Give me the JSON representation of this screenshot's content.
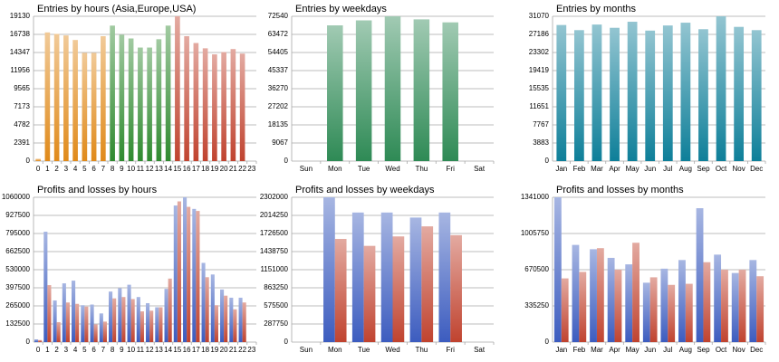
{
  "chart_data": [
    {
      "type": "bar",
      "title": "Entries by hours (Asia,Europe,USA)",
      "categories": [
        "0",
        "1",
        "2",
        "3",
        "4",
        "5",
        "6",
        "7",
        "8",
        "9",
        "10",
        "11",
        "12",
        "13",
        "14",
        "15",
        "16",
        "17",
        "18",
        "19",
        "20",
        "21",
        "22",
        "23"
      ],
      "values": [
        300,
        17000,
        16800,
        16600,
        16000,
        14300,
        14300,
        16500,
        17900,
        16700,
        16200,
        15000,
        15000,
        16100,
        17900,
        19130,
        16500,
        15600,
        14900,
        14100,
        14400,
        14800,
        14200,
        null
      ],
      "colors": [
        "#e08a1a",
        "#e08a1a",
        "#e08a1a",
        "#e08a1a",
        "#e08a1a",
        "#e08a1a",
        "#e08a1a",
        "#e08a1a",
        "#2f8a2f",
        "#2f8a2f",
        "#2f8a2f",
        "#2f8a2f",
        "#2f8a2f",
        "#2f8a2f",
        "#2f8a2f",
        "#c0432f",
        "#c0432f",
        "#c0432f",
        "#c0432f",
        "#c0432f",
        "#c0432f",
        "#c0432f",
        "#c0432f",
        "#c0432f"
      ],
      "ylim": [
        0,
        19130
      ],
      "yticks": [
        0,
        2391,
        4782,
        7173,
        9565,
        11956,
        14347,
        16738,
        19130
      ],
      "grid": true
    },
    {
      "type": "bar",
      "title": "Entries by weekdays",
      "categories": [
        "Sun",
        "Mon",
        "Tue",
        "Wed",
        "Thu",
        "Fri",
        "Sat"
      ],
      "values": [
        0,
        68000,
        70500,
        72540,
        71000,
        69500,
        0
      ],
      "color": "#2e8a55",
      "ylim": [
        0,
        72540
      ],
      "yticks": [
        0,
        9067,
        18135,
        27202,
        36270,
        45337,
        54405,
        63472,
        72540
      ],
      "grid": true
    },
    {
      "type": "bar",
      "title": "Entries by months",
      "categories": [
        "Jan",
        "Feb",
        "Mar",
        "Apr",
        "May",
        "Jun",
        "Jul",
        "Aug",
        "Sep",
        "Oct",
        "Nov",
        "Dec"
      ],
      "values": [
        29200,
        28100,
        29300,
        28600,
        29900,
        28000,
        29100,
        29700,
        28300,
        31070,
        28800,
        28100
      ],
      "color": "#0e7f99",
      "ylim": [
        0,
        31070
      ],
      "yticks": [
        0,
        3883,
        7767,
        11651,
        15535,
        19419,
        23302,
        27186,
        31070
      ],
      "grid": true
    },
    {
      "type": "grouped_bar",
      "title": "Profits and losses by hours",
      "categories": [
        "0",
        "1",
        "2",
        "3",
        "4",
        "5",
        "6",
        "7",
        "8",
        "9",
        "10",
        "11",
        "12",
        "13",
        "14",
        "15",
        "16",
        "17",
        "18",
        "19",
        "20",
        "21",
        "22",
        "23"
      ],
      "series": [
        {
          "color": "#3c5cbf",
          "values": [
            20000,
            808000,
            305000,
            430000,
            450000,
            270000,
            275000,
            210000,
            370000,
            395000,
            420000,
            330000,
            285000,
            255000,
            390000,
            1000000,
            1060000,
            975000,
            580000,
            495000,
            385000,
            325000,
            325000,
            null
          ]
        },
        {
          "color": "#c0432f",
          "values": [
            15000,
            417000,
            146000,
            290000,
            280000,
            260000,
            130000,
            150000,
            320000,
            330000,
            315000,
            225000,
            230000,
            255000,
            465000,
            1030000,
            990000,
            960000,
            475000,
            270000,
            340000,
            240000,
            290000,
            null
          ]
        }
      ],
      "ylim": [
        0,
        1060000
      ],
      "yticks": [
        0,
        132500,
        265000,
        397500,
        530000,
        662500,
        795000,
        927500,
        1060000
      ],
      "grid": true
    },
    {
      "type": "grouped_bar",
      "title": "Profits and losses by weekdays",
      "categories": [
        "Sun",
        "Mon",
        "Tue",
        "Wed",
        "Thu",
        "Fri",
        "Sat"
      ],
      "series": [
        {
          "color": "#3c5cbf",
          "values": [
            0,
            2302000,
            2060000,
            2060000,
            1980000,
            2060000,
            0
          ]
        },
        {
          "color": "#c0432f",
          "values": [
            0,
            1640000,
            1530000,
            1680000,
            1840000,
            1700000,
            0
          ]
        }
      ],
      "ylim": [
        0,
        2302000
      ],
      "yticks": [
        0,
        287750,
        575500,
        863250,
        1151000,
        1438750,
        1726500,
        2014250,
        2302000
      ],
      "grid": true
    },
    {
      "type": "grouped_bar",
      "title": "Profits and losses by months",
      "categories": [
        "Jan",
        "Feb",
        "Mar",
        "Apr",
        "May",
        "Jun",
        "Jul",
        "Aug",
        "Sep",
        "Oct",
        "Nov",
        "Dec"
      ],
      "series": [
        {
          "color": "#3c5cbf",
          "values": [
            1341000,
            900000,
            860000,
            780000,
            720000,
            550000,
            680000,
            760000,
            1240000,
            810000,
            640000,
            760000
          ]
        },
        {
          "color": "#c0432f",
          "values": [
            590000,
            650000,
            870000,
            670000,
            920000,
            600000,
            530000,
            540000,
            740000,
            670000,
            670000,
            610000
          ]
        }
      ],
      "ylim": [
        0,
        1341000
      ],
      "yticks": [
        0,
        335250,
        670500,
        1005750,
        1341000
      ],
      "grid": true
    }
  ]
}
